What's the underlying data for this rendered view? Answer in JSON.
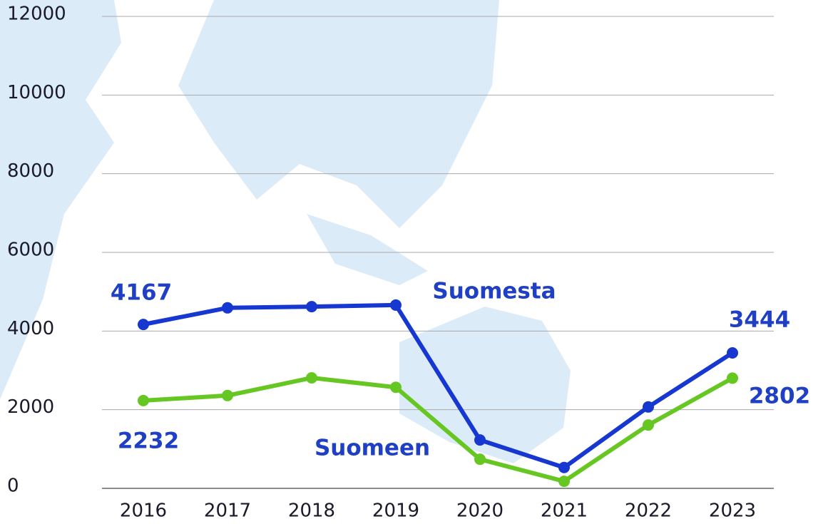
{
  "chart_data": {
    "type": "line",
    "categories": [
      "2016",
      "2017",
      "2018",
      "2019",
      "2020",
      "2021",
      "2022",
      "2023"
    ],
    "series": [
      {
        "name": "Suomesta",
        "color": "#1738d0",
        "values": [
          4167,
          4590,
          4620,
          4660,
          1230,
          530,
          2070,
          3444
        ]
      },
      {
        "name": "Suomeen",
        "color": "#66c722",
        "values": [
          2232,
          2360,
          2810,
          2570,
          740,
          180,
          1610,
          2802
        ]
      }
    ],
    "ylim": [
      0,
      12000
    ],
    "yticks": [
      0,
      2000,
      4000,
      6000,
      8000,
      10000,
      12000
    ],
    "grid": true
  }
}
